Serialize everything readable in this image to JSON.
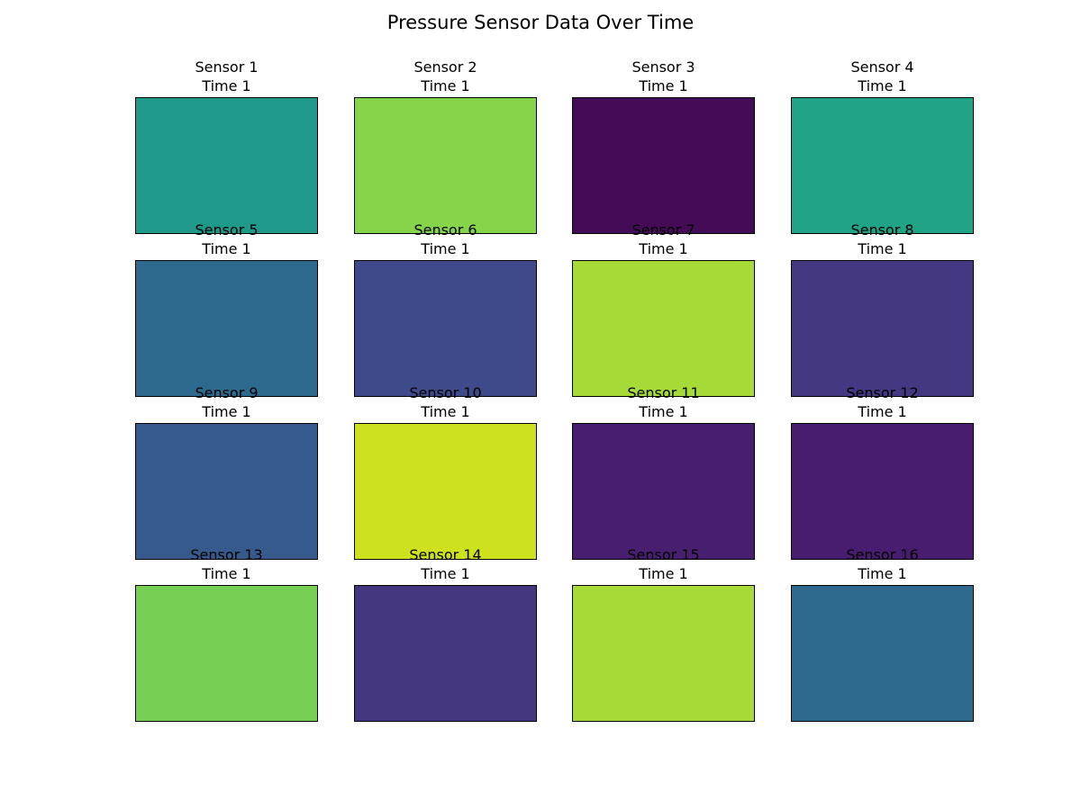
{
  "title": "Pressure Sensor Data Over Time",
  "chart_data": {
    "type": "heatmap",
    "title": "Pressure Sensor Data Over Time",
    "colormap": "viridis",
    "grid": false,
    "panels": [
      {
        "sensor": "Sensor 1",
        "time": "Time 1",
        "color": "#1f9a8a"
      },
      {
        "sensor": "Sensor 2",
        "time": "Time 1",
        "color": "#86d549"
      },
      {
        "sensor": "Sensor 3",
        "time": "Time 1",
        "color": "#440b57"
      },
      {
        "sensor": "Sensor 4",
        "time": "Time 1",
        "color": "#20a386"
      },
      {
        "sensor": "Sensor 5",
        "time": "Time 1",
        "color": "#2e6a8d"
      },
      {
        "sensor": "Sensor 6",
        "time": "Time 1",
        "color": "#3e4a89"
      },
      {
        "sensor": "Sensor 7",
        "time": "Time 1",
        "color": "#a5da37"
      },
      {
        "sensor": "Sensor 8",
        "time": "Time 1",
        "color": "#443882"
      },
      {
        "sensor": "Sensor 9",
        "time": "Time 1",
        "color": "#375a8c"
      },
      {
        "sensor": "Sensor 10",
        "time": "Time 1",
        "color": "#cde11d"
      },
      {
        "sensor": "Sensor 11",
        "time": "Time 1",
        "color": "#481f70"
      },
      {
        "sensor": "Sensor 12",
        "time": "Time 1",
        "color": "#481c6e"
      },
      {
        "sensor": "Sensor 13",
        "time": "Time 1",
        "color": "#75d054"
      },
      {
        "sensor": "Sensor 14",
        "time": "Time 1",
        "color": "#45377f"
      },
      {
        "sensor": "Sensor 15",
        "time": "Time 1",
        "color": "#a5da37"
      },
      {
        "sensor": "Sensor 16",
        "time": "Time 1",
        "color": "#2e6a8d"
      }
    ]
  }
}
